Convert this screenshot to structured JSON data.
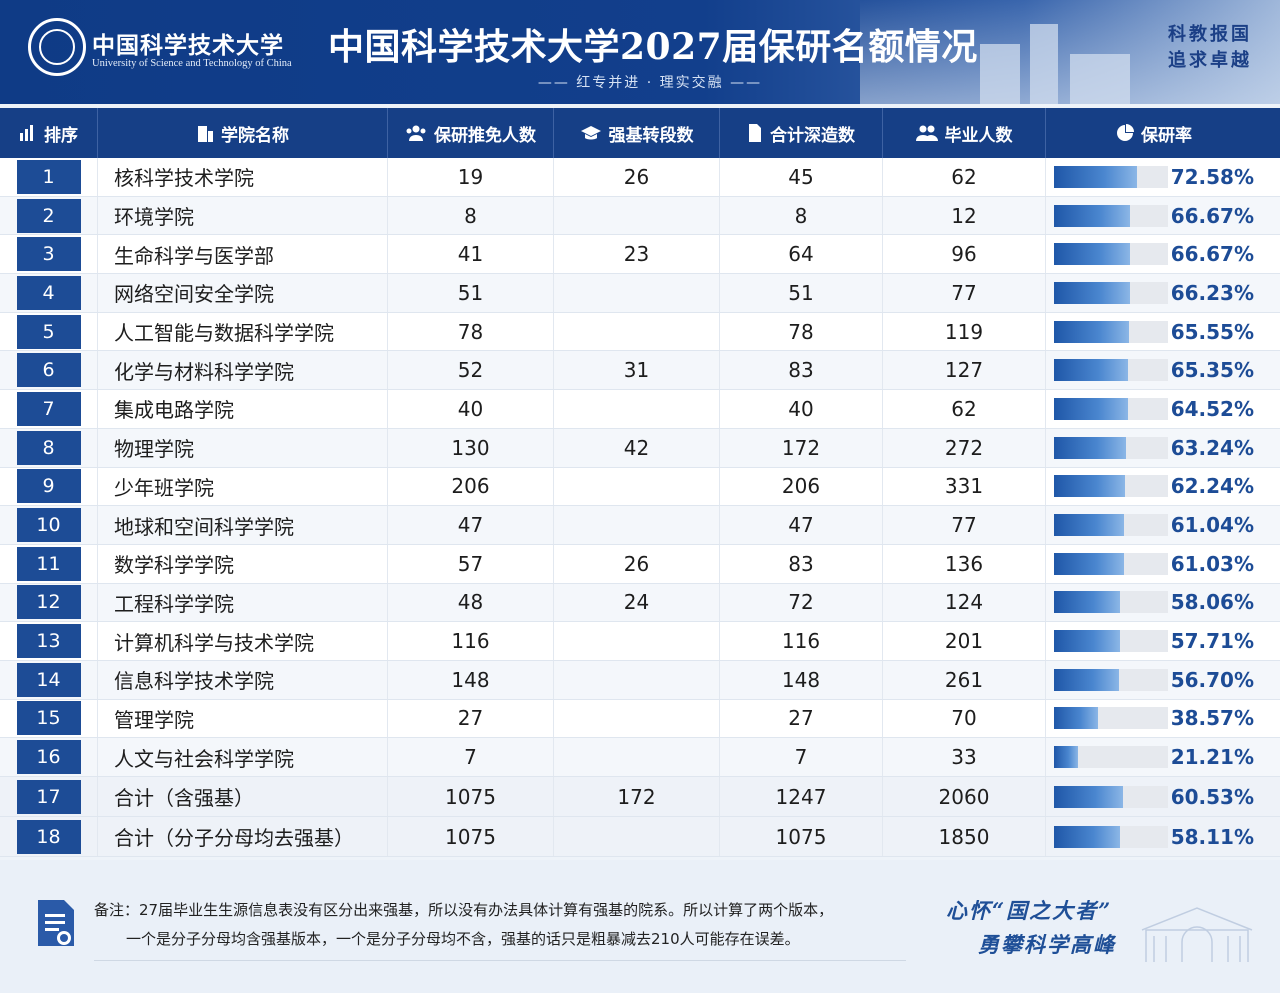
{
  "header": {
    "university_cn": "中国科学技术大学",
    "university_en": "University of Science and Technology of China",
    "title": "中国科学技术大学2027届保研名额情况",
    "subtitle": "—— 红专并进 · 理实交融 ——",
    "motto_line1": "科教报国",
    "motto_line2": "追求卓越",
    "colors": {
      "primary": "#163f86",
      "accent": "#1d4c96"
    }
  },
  "columns": {
    "rank": "排序",
    "name": "学院名称",
    "recommended": "保研推免人数",
    "strong_base": "强基转段数",
    "total_further": "合计深造数",
    "graduates": "毕业人数",
    "rate": "保研率"
  },
  "rows": [
    {
      "rank": "1",
      "name": "核科学技术学院",
      "recommended": "19",
      "strong_base": "26",
      "total_further": "45",
      "graduates": "62",
      "rate": 72.58,
      "rate_text": "72.58%"
    },
    {
      "rank": "2",
      "name": "环境学院",
      "recommended": "8",
      "strong_base": "",
      "total_further": "8",
      "graduates": "12",
      "rate": 66.67,
      "rate_text": "66.67%"
    },
    {
      "rank": "3",
      "name": "生命科学与医学部",
      "recommended": "41",
      "strong_base": "23",
      "total_further": "64",
      "graduates": "96",
      "rate": 66.67,
      "rate_text": "66.67%"
    },
    {
      "rank": "4",
      "name": "网络空间安全学院",
      "recommended": "51",
      "strong_base": "",
      "total_further": "51",
      "graduates": "77",
      "rate": 66.23,
      "rate_text": "66.23%"
    },
    {
      "rank": "5",
      "name": "人工智能与数据科学学院",
      "recommended": "78",
      "strong_base": "",
      "total_further": "78",
      "graduates": "119",
      "rate": 65.55,
      "rate_text": "65.55%"
    },
    {
      "rank": "6",
      "name": "化学与材料科学学院",
      "recommended": "52",
      "strong_base": "31",
      "total_further": "83",
      "graduates": "127",
      "rate": 65.35,
      "rate_text": "65.35%"
    },
    {
      "rank": "7",
      "name": "集成电路学院",
      "recommended": "40",
      "strong_base": "",
      "total_further": "40",
      "graduates": "62",
      "rate": 64.52,
      "rate_text": "64.52%"
    },
    {
      "rank": "8",
      "name": "物理学院",
      "recommended": "130",
      "strong_base": "42",
      "total_further": "172",
      "graduates": "272",
      "rate": 63.24,
      "rate_text": "63.24%"
    },
    {
      "rank": "9",
      "name": "少年班学院",
      "recommended": "206",
      "strong_base": "",
      "total_further": "206",
      "graduates": "331",
      "rate": 62.24,
      "rate_text": "62.24%"
    },
    {
      "rank": "10",
      "name": "地球和空间科学学院",
      "recommended": "47",
      "strong_base": "",
      "total_further": "47",
      "graduates": "77",
      "rate": 61.04,
      "rate_text": "61.04%"
    },
    {
      "rank": "11",
      "name": "数学科学学院",
      "recommended": "57",
      "strong_base": "26",
      "total_further": "83",
      "graduates": "136",
      "rate": 61.03,
      "rate_text": "61.03%"
    },
    {
      "rank": "12",
      "name": "工程科学学院",
      "recommended": "48",
      "strong_base": "24",
      "total_further": "72",
      "graduates": "124",
      "rate": 58.06,
      "rate_text": "58.06%"
    },
    {
      "rank": "13",
      "name": "计算机科学与技术学院",
      "recommended": "116",
      "strong_base": "",
      "total_further": "116",
      "graduates": "201",
      "rate": 57.71,
      "rate_text": "57.71%"
    },
    {
      "rank": "14",
      "name": "信息科学技术学院",
      "recommended": "148",
      "strong_base": "",
      "total_further": "148",
      "graduates": "261",
      "rate": 56.7,
      "rate_text": "56.70%"
    },
    {
      "rank": "15",
      "name": "管理学院",
      "recommended": "27",
      "strong_base": "",
      "total_further": "27",
      "graduates": "70",
      "rate": 38.57,
      "rate_text": "38.57%"
    },
    {
      "rank": "16",
      "name": "人文与社会科学学院",
      "recommended": "7",
      "strong_base": "",
      "total_further": "7",
      "graduates": "33",
      "rate": 21.21,
      "rate_text": "21.21%"
    },
    {
      "rank": "17",
      "name": "合计（含强基）",
      "recommended": "1075",
      "strong_base": "172",
      "total_further": "1247",
      "graduates": "2060",
      "rate": 60.53,
      "rate_text": "60.53%"
    },
    {
      "rank": "18",
      "name": "合计（分子分母均去强基）",
      "recommended": "1075",
      "strong_base": "",
      "total_further": "1075",
      "graduates": "1850",
      "rate": 58.11,
      "rate_text": "58.11%"
    }
  ],
  "footer": {
    "note_line1": "备注：27届毕业生生源信息表没有区分出来强基，所以没有办法具体计算有强基的院系。所以计算了两个版本，",
    "note_line2": "一个是分子分母均含强基版本，一个是分子分母均不含，强基的话只是粗暴减去210人可能存在误差。",
    "slogan_line1": "心怀“国之大者”",
    "slogan_line2": "勇攀科学高峰"
  }
}
